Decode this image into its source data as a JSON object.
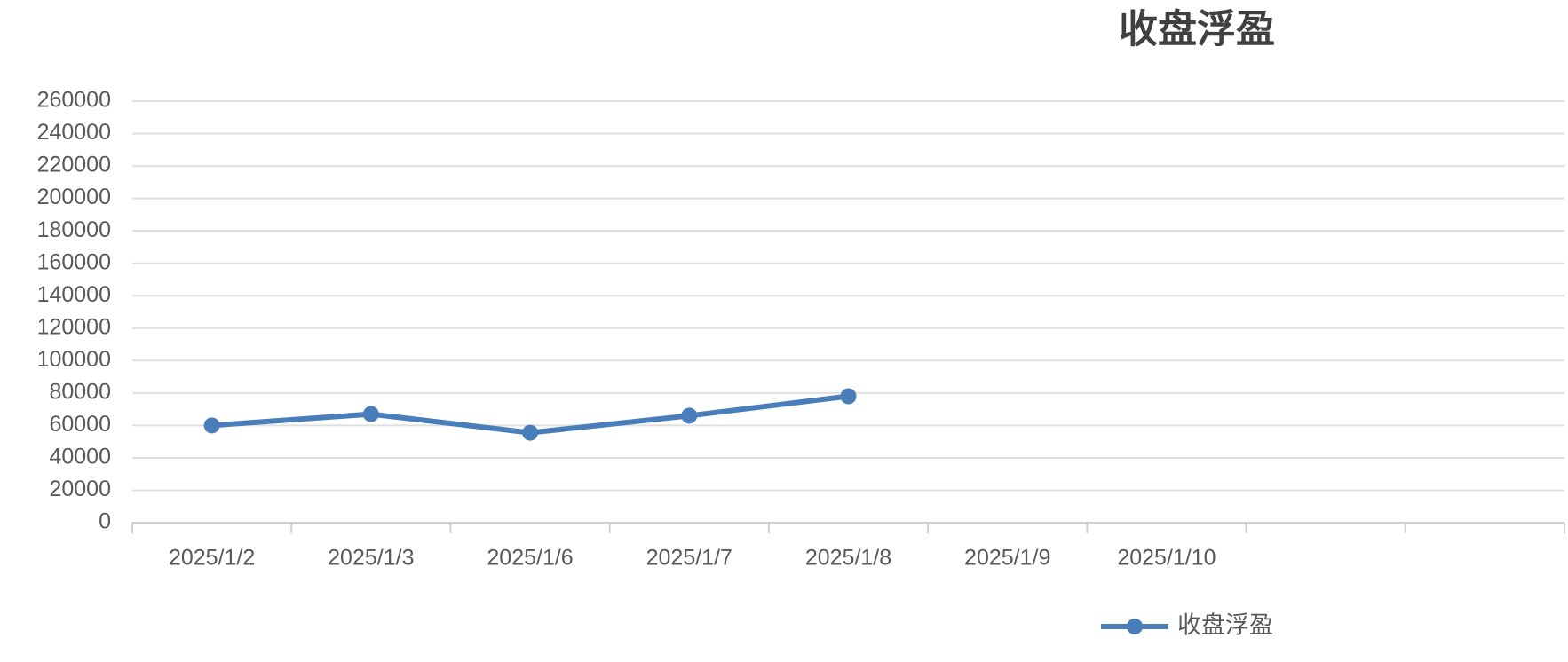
{
  "chart_data": {
    "type": "line",
    "title": "收盘浮盈",
    "categories": [
      "2025/1/2",
      "2025/1/3",
      "2025/1/6",
      "2025/1/7",
      "2025/1/8",
      "2025/1/9",
      "2025/1/10",
      null,
      null
    ],
    "series": [
      {
        "name": "收盘浮盈",
        "color": "#4a7ebb",
        "values": [
          60000,
          67000,
          55500,
          66000,
          78000,
          null,
          null,
          null,
          null
        ]
      }
    ],
    "ylim": [
      0,
      260000
    ],
    "yticks": [
      0,
      20000,
      40000,
      60000,
      80000,
      100000,
      120000,
      140000,
      160000,
      180000,
      200000,
      220000,
      240000,
      260000
    ],
    "grid": true,
    "legend": "bottom"
  }
}
